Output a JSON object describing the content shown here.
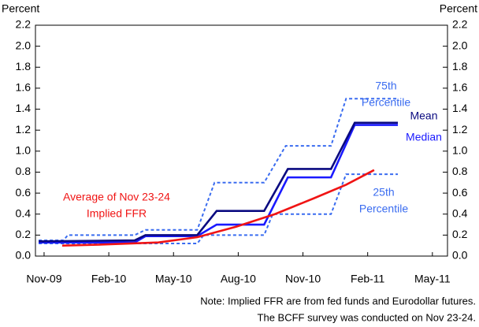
{
  "chart_data": {
    "type": "line",
    "y_label_left": "Percent",
    "y_label_right": "Percent",
    "xlim": [
      -0.4,
      18.7
    ],
    "xticks": [
      {
        "value": 0,
        "label": "Nov-09"
      },
      {
        "value": 3,
        "label": "Feb-10"
      },
      {
        "value": 6,
        "label": "May-10"
      },
      {
        "value": 9,
        "label": "Aug-10"
      },
      {
        "value": 12,
        "label": "Nov-10"
      },
      {
        "value": 15,
        "label": "Feb-11"
      },
      {
        "value": 18,
        "label": "May-11"
      }
    ],
    "ylim": [
      0,
      2.2
    ],
    "yticks": [
      {
        "value": 0,
        "label": "0.0"
      },
      0.2,
      0.4,
      0.6,
      0.8,
      {
        "value": 1,
        "label": "1.0"
      },
      1.2,
      1.4,
      1.6,
      1.8,
      {
        "value": 2,
        "label": "2.0"
      },
      2.2
    ],
    "series": [
      {
        "label": [
          "75th",
          "Percentile"
        ],
        "color": "#3a6cf0",
        "dashed": true,
        "x": [
          -0.25,
          0.9,
          1.1,
          4.2,
          4.7,
          7.1,
          7.9,
          10.2,
          11.2,
          13.3,
          14,
          16.4
        ],
        "values": [
          0.15,
          0.15,
          0.2,
          0.2,
          0.25,
          0.25,
          0.7,
          0.7,
          1.05,
          1.05,
          1.5,
          1.5
        ]
      },
      {
        "label": [
          "25th",
          "Percentile"
        ],
        "color": "#3a6cf0",
        "dashed": true,
        "x": [
          -0.25,
          7.1,
          7.4,
          10.2,
          10.6,
          13.3,
          14,
          16.4
        ],
        "values": [
          0.12,
          0.12,
          0.2,
          0.2,
          0.4,
          0.4,
          0.78,
          0.78
        ]
      },
      {
        "label": [
          "Median"
        ],
        "color": "#1a1aff",
        "dashed": false,
        "x": [
          -0.25,
          4.2,
          4.7,
          7.1,
          8,
          10.2,
          11.3,
          13.3,
          14.4,
          16.4
        ],
        "values": [
          0.13,
          0.13,
          0.19,
          0.19,
          0.3,
          0.3,
          0.75,
          0.75,
          1.25,
          1.25
        ]
      },
      {
        "label": [
          "Mean"
        ],
        "color": "#0a0a80",
        "dashed": false,
        "x": [
          -0.25,
          4.2,
          4.7,
          7.1,
          8,
          10.2,
          11.3,
          13.3,
          14.4,
          16.4
        ],
        "values": [
          0.14,
          0.15,
          0.2,
          0.2,
          0.43,
          0.43,
          0.83,
          0.83,
          1.27,
          1.27
        ]
      },
      {
        "label": [
          "Average of Nov 23-24",
          "Implied FFR"
        ],
        "color": "#f01414",
        "dashed": false,
        "x": [
          0.84,
          2.7,
          5.3,
          7.1,
          8.9,
          10.7,
          12.5,
          14,
          15.3
        ],
        "values": [
          0.1,
          0.11,
          0.13,
          0.18,
          0.28,
          0.4,
          0.55,
          0.68,
          0.82
        ]
      }
    ],
    "notes": [
      "Note: Implied FFR are from fed funds and Eurodollar futures.",
      "The BCFF survey was conducted on Nov 23-24."
    ]
  }
}
